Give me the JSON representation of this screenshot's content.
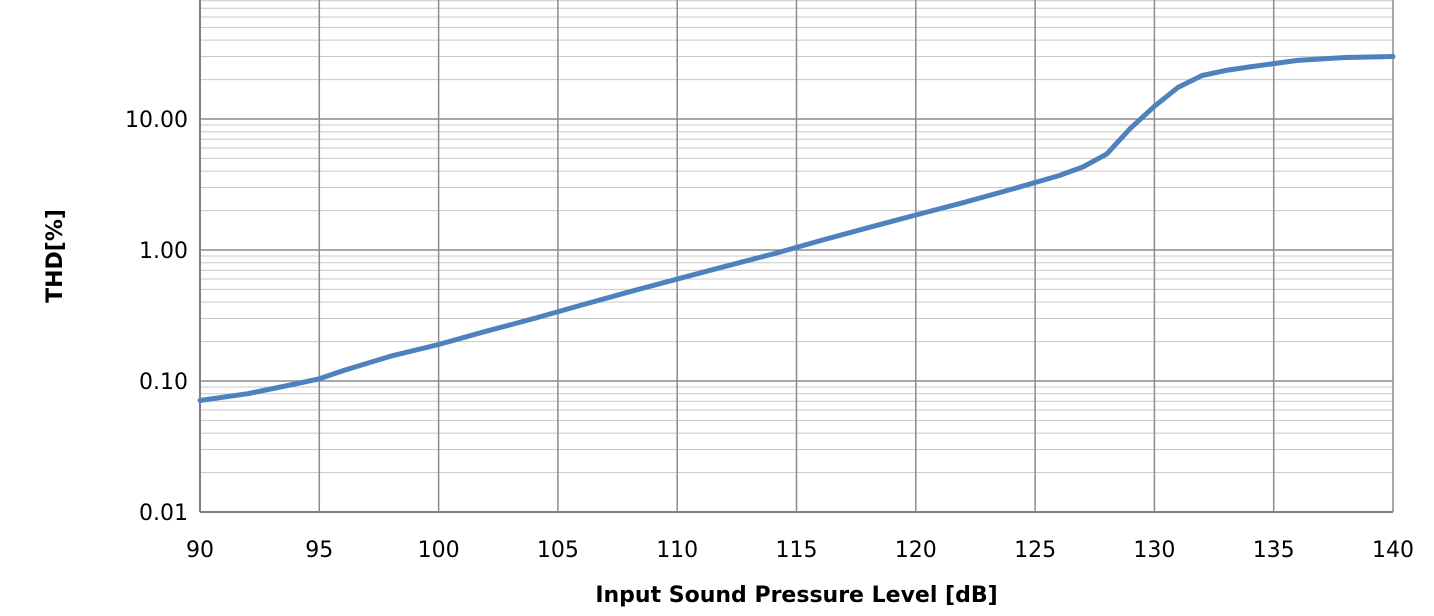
{
  "chart_data": {
    "type": "line",
    "title": "",
    "xlabel": "Input Sound Pressure Level [dB]",
    "ylabel": "THD[%]",
    "xlim": [
      90,
      140
    ],
    "ylim": [
      0.01,
      100
    ],
    "yscale": "log",
    "grid": true,
    "x_ticks": [
      90,
      95,
      100,
      105,
      110,
      115,
      120,
      125,
      130,
      135,
      140
    ],
    "y_ticks": [
      0.01,
      0.1,
      1,
      10
    ],
    "y_tick_labels": [
      "0.01",
      "0.10",
      "1.00",
      "10.00"
    ],
    "x_tick_labels": [
      "90",
      "95",
      "100",
      "105",
      "110",
      "115",
      "120",
      "125",
      "130",
      "135",
      "140"
    ],
    "series": [
      {
        "color": "#4f81bd",
        "x": [
          90,
          92,
          94,
          95,
          96,
          98,
          100,
          102,
          104,
          106,
          108,
          110,
          112,
          114,
          116,
          118,
          120,
          122,
          124,
          126,
          127,
          128,
          129,
          130,
          131,
          132,
          133,
          134,
          135,
          136,
          138,
          140
        ],
        "y": [
          0.071,
          0.08,
          0.095,
          0.104,
          0.12,
          0.155,
          0.19,
          0.24,
          0.3,
          0.38,
          0.48,
          0.6,
          0.75,
          0.93,
          1.18,
          1.48,
          1.85,
          2.3,
          2.9,
          3.7,
          4.3,
          5.4,
          8.5,
          12.5,
          17.5,
          21.5,
          23.5,
          25,
          26.5,
          28,
          29.5,
          30
        ]
      }
    ]
  }
}
